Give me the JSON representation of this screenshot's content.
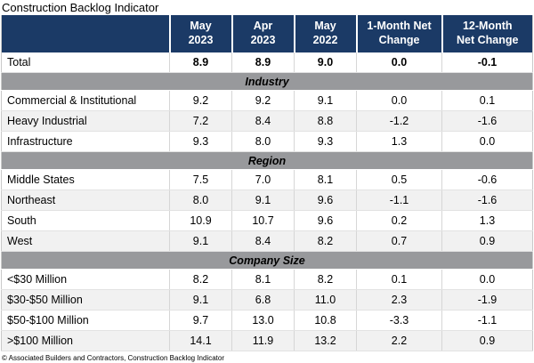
{
  "title": "Construction Backlog Indicator",
  "source_note": "© Associated Builders and Contractors, Construction Backlog Indicator",
  "colors": {
    "header_bg": "#1B3A66",
    "header_text": "#FFFFFF",
    "section_bg": "#98999C",
    "stripe_bg": "#F1F1F1",
    "grid_line": "#D6D6D6",
    "text": "#000000"
  },
  "chart_data": {
    "type": "table",
    "title": "Construction Backlog Indicator",
    "columns": [
      {
        "top": "",
        "bottom": ""
      },
      {
        "top": "May",
        "bottom": "2023"
      },
      {
        "top": "Apr",
        "bottom": "2023"
      },
      {
        "top": "May",
        "bottom": "2022"
      },
      {
        "top": "1-Month Net",
        "bottom": "Change"
      },
      {
        "top": "12-Month",
        "bottom": "Net Change"
      }
    ],
    "rows": [
      {
        "kind": "data",
        "label": "Total",
        "bold": true,
        "values": [
          "8.9",
          "8.9",
          "9.0",
          "0.0",
          "-0.1"
        ]
      },
      {
        "kind": "section",
        "label": "Industry"
      },
      {
        "kind": "data",
        "label": "Commercial & Institutional",
        "values": [
          "9.2",
          "9.2",
          "9.1",
          "0.0",
          "0.1"
        ]
      },
      {
        "kind": "data",
        "label": "Heavy Industrial",
        "values": [
          "7.2",
          "8.4",
          "8.8",
          "-1.2",
          "-1.6"
        ]
      },
      {
        "kind": "data",
        "label": "Infrastructure",
        "values": [
          "9.3",
          "8.0",
          "9.3",
          "1.3",
          "0.0"
        ]
      },
      {
        "kind": "section",
        "label": "Region"
      },
      {
        "kind": "data",
        "label": "Middle States",
        "values": [
          "7.5",
          "7.0",
          "8.1",
          "0.5",
          "-0.6"
        ]
      },
      {
        "kind": "data",
        "label": "Northeast",
        "values": [
          "8.0",
          "9.1",
          "9.6",
          "-1.1",
          "-1.6"
        ]
      },
      {
        "kind": "data",
        "label": "South",
        "values": [
          "10.9",
          "10.7",
          "9.6",
          "0.2",
          "1.3"
        ]
      },
      {
        "kind": "data",
        "label": "West",
        "values": [
          "9.1",
          "8.4",
          "8.2",
          "0.7",
          "0.9"
        ]
      },
      {
        "kind": "section",
        "label": "Company Size"
      },
      {
        "kind": "data",
        "label": "<$30 Million",
        "values": [
          "8.2",
          "8.1",
          "8.2",
          "0.1",
          "0.0"
        ]
      },
      {
        "kind": "data",
        "label": "$30-$50 Million",
        "values": [
          "9.1",
          "6.8",
          "11.0",
          "2.3",
          "-1.9"
        ]
      },
      {
        "kind": "data",
        "label": "$50-$100 Million",
        "values": [
          "9.7",
          "13.0",
          "10.8",
          "-3.3",
          "-1.1"
        ]
      },
      {
        "kind": "data",
        "label": ">$100 Million",
        "values": [
          "14.1",
          "11.9",
          "13.2",
          "2.2",
          "0.9"
        ]
      }
    ]
  }
}
